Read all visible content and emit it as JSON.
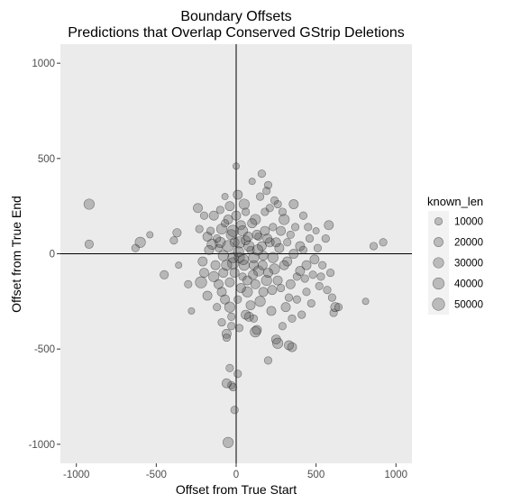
{
  "chart_data": {
    "type": "scatter",
    "title": "Boundary Offsets",
    "subtitle": "Predictions that Overlap Conserved GStrip Deletions",
    "xlabel": "Offset from True Start",
    "ylabel": "Offset from True End",
    "xlim": [
      -1100,
      1100
    ],
    "ylim": [
      -1100,
      1100
    ],
    "x_ticks": [
      -1000,
      -500,
      0,
      500,
      1000
    ],
    "y_ticks": [
      -1000,
      -500,
      0,
      500,
      1000
    ],
    "x_tick_labels": [
      "-1000",
      "-500",
      "0",
      "500",
      "1000"
    ],
    "y_tick_labels": [
      "-1000",
      "-500",
      "0",
      "500",
      "1000"
    ],
    "grid": true,
    "reference_lines": {
      "x": 0,
      "y": 0
    },
    "legend": {
      "title": "known_len",
      "placement": "right",
      "entries": [
        {
          "label": "10000",
          "value": 10000
        },
        {
          "label": "20000",
          "value": 20000
        },
        {
          "label": "30000",
          "value": 30000
        },
        {
          "label": "40000",
          "value": 40000
        },
        {
          "label": "50000",
          "value": 50000
        }
      ]
    },
    "colors": {
      "panel": "#ebebeb",
      "grid": "#ffffff",
      "point_fill": "#555555",
      "point_stroke": "#000000",
      "legend_key": "#f2f2f2"
    },
    "points": [
      {
        "x": -920,
        "y": 260,
        "size": 30000
      },
      {
        "x": -920,
        "y": 50,
        "size": 15000
      },
      {
        "x": -600,
        "y": 60,
        "size": 30000
      },
      {
        "x": -630,
        "y": 30,
        "size": 10000
      },
      {
        "x": -540,
        "y": 100,
        "size": 5000
      },
      {
        "x": -450,
        "y": -110,
        "size": 15000
      },
      {
        "x": -390,
        "y": 70,
        "size": 10000
      },
      {
        "x": -370,
        "y": 110,
        "size": 15000
      },
      {
        "x": -360,
        "y": -60,
        "size": 5000
      },
      {
        "x": -300,
        "y": -160,
        "size": 10000
      },
      {
        "x": -280,
        "y": -300,
        "size": 5000
      },
      {
        "x": -220,
        "y": -150,
        "size": 40000
      },
      {
        "x": -200,
        "y": 200,
        "size": 10000
      },
      {
        "x": -180,
        "y": 90,
        "size": 20000
      },
      {
        "x": -150,
        "y": 50,
        "size": 30000
      },
      {
        "x": -130,
        "y": -60,
        "size": 20000
      },
      {
        "x": -110,
        "y": 30,
        "size": 10000
      },
      {
        "x": -100,
        "y": 230,
        "size": 10000
      },
      {
        "x": -90,
        "y": 130,
        "size": 30000
      },
      {
        "x": -80,
        "y": -100,
        "size": 20000
      },
      {
        "x": -70,
        "y": 300,
        "size": 5000
      },
      {
        "x": -60,
        "y": -420,
        "size": 20000
      },
      {
        "x": -60,
        "y": -440,
        "size": 10000
      },
      {
        "x": -50,
        "y": 180,
        "size": 20000
      },
      {
        "x": -40,
        "y": -280,
        "size": 30000
      },
      {
        "x": -40,
        "y": -150,
        "size": 20000
      },
      {
        "x": -30,
        "y": 100,
        "size": 30000
      },
      {
        "x": -20,
        "y": -50,
        "size": 40000
      },
      {
        "x": -10,
        "y": 60,
        "size": 20000
      },
      {
        "x": 0,
        "y": 460,
        "size": 5000
      },
      {
        "x": 10,
        "y": 310,
        "size": 20000
      },
      {
        "x": 20,
        "y": -20,
        "size": 30000
      },
      {
        "x": 30,
        "y": 150,
        "size": 20000
      },
      {
        "x": 40,
        "y": -120,
        "size": 10000
      },
      {
        "x": 50,
        "y": 260,
        "size": 30000
      },
      {
        "x": 60,
        "y": 70,
        "size": 20000
      },
      {
        "x": 70,
        "y": -200,
        "size": 30000
      },
      {
        "x": 80,
        "y": -330,
        "size": 20000
      },
      {
        "x": 90,
        "y": 20,
        "size": 10000
      },
      {
        "x": 100,
        "y": 380,
        "size": 5000
      },
      {
        "x": 110,
        "y": -60,
        "size": 20000
      },
      {
        "x": 120,
        "y": 180,
        "size": 30000
      },
      {
        "x": 130,
        "y": -400,
        "size": 20000
      },
      {
        "x": 140,
        "y": 90,
        "size": 10000
      },
      {
        "x": 150,
        "y": -250,
        "size": 30000
      },
      {
        "x": 160,
        "y": 420,
        "size": 10000
      },
      {
        "x": 170,
        "y": -10,
        "size": 20000
      },
      {
        "x": 180,
        "y": 220,
        "size": 10000
      },
      {
        "x": 190,
        "y": -140,
        "size": 30000
      },
      {
        "x": 200,
        "y": 360,
        "size": 10000
      },
      {
        "x": 210,
        "y": 60,
        "size": 20000
      },
      {
        "x": 220,
        "y": -300,
        "size": 20000
      },
      {
        "x": 230,
        "y": 140,
        "size": 10000
      },
      {
        "x": 240,
        "y": -80,
        "size": 30000
      },
      {
        "x": 250,
        "y": -450,
        "size": 20000
      },
      {
        "x": 260,
        "y": 260,
        "size": 10000
      },
      {
        "x": 270,
        "y": 30,
        "size": 20000
      },
      {
        "x": 280,
        "y": -180,
        "size": 10000
      },
      {
        "x": 290,
        "y": -380,
        "size": 10000
      },
      {
        "x": 300,
        "y": 180,
        "size": 30000
      },
      {
        "x": 320,
        "y": -40,
        "size": 20000
      },
      {
        "x": 330,
        "y": -230,
        "size": 10000
      },
      {
        "x": 340,
        "y": 100,
        "size": 10000
      },
      {
        "x": 350,
        "y": -490,
        "size": 20000
      },
      {
        "x": 360,
        "y": 260,
        "size": 20000
      },
      {
        "x": 380,
        "y": -120,
        "size": 10000
      },
      {
        "x": 400,
        "y": 40,
        "size": 20000
      },
      {
        "x": 410,
        "y": -320,
        "size": 10000
      },
      {
        "x": 420,
        "y": 200,
        "size": 10000
      },
      {
        "x": 440,
        "y": -60,
        "size": 20000
      },
      {
        "x": 460,
        "y": 80,
        "size": 10000
      },
      {
        "x": 470,
        "y": -260,
        "size": 10000
      },
      {
        "x": 490,
        "y": -30,
        "size": 20000
      },
      {
        "x": 500,
        "y": 120,
        "size": 5000
      },
      {
        "x": 520,
        "y": -170,
        "size": 10000
      },
      {
        "x": 540,
        "y": -60,
        "size": 10000
      },
      {
        "x": 570,
        "y": -190,
        "size": 10000
      },
      {
        "x": 580,
        "y": 150,
        "size": 20000
      },
      {
        "x": 600,
        "y": -230,
        "size": 10000
      },
      {
        "x": 610,
        "y": -310,
        "size": 10000
      },
      {
        "x": 620,
        "y": -280,
        "size": 20000
      },
      {
        "x": 640,
        "y": -280,
        "size": 10000
      },
      {
        "x": 810,
        "y": -250,
        "size": 5000
      },
      {
        "x": 860,
        "y": 40,
        "size": 10000
      },
      {
        "x": 920,
        "y": 60,
        "size": 10000
      },
      {
        "x": -40,
        "y": -600,
        "size": 10000
      },
      {
        "x": -30,
        "y": -690,
        "size": 10000
      },
      {
        "x": -20,
        "y": -700,
        "size": 10000
      },
      {
        "x": -60,
        "y": -680,
        "size": 20000
      },
      {
        "x": -50,
        "y": -990,
        "size": 30000
      },
      {
        "x": -10,
        "y": -820,
        "size": 10000
      },
      {
        "x": 10,
        "y": -630,
        "size": 10000
      },
      {
        "x": 120,
        "y": -410,
        "size": 30000
      },
      {
        "x": 200,
        "y": -560,
        "size": 10000
      },
      {
        "x": 260,
        "y": -470,
        "size": 30000
      },
      {
        "x": 330,
        "y": -480,
        "size": 20000
      },
      {
        "x": -240,
        "y": 240,
        "size": 20000
      },
      {
        "x": -210,
        "y": -40,
        "size": 20000
      },
      {
        "x": -180,
        "y": -220,
        "size": 20000
      },
      {
        "x": -160,
        "y": 120,
        "size": 10000
      },
      {
        "x": -140,
        "y": -120,
        "size": 30000
      },
      {
        "x": -120,
        "y": -280,
        "size": 10000
      },
      {
        "x": -100,
        "y": 60,
        "size": 30000
      },
      {
        "x": -90,
        "y": -200,
        "size": 20000
      },
      {
        "x": -70,
        "y": 160,
        "size": 10000
      },
      {
        "x": -60,
        "y": -60,
        "size": 30000
      },
      {
        "x": -40,
        "y": 250,
        "size": 20000
      },
      {
        "x": -30,
        "y": -330,
        "size": 10000
      },
      {
        "x": -20,
        "y": 120,
        "size": 40000
      },
      {
        "x": -10,
        "y": -100,
        "size": 20000
      },
      {
        "x": 0,
        "y": 200,
        "size": 20000
      },
      {
        "x": 10,
        "y": -240,
        "size": 10000
      },
      {
        "x": 20,
        "y": 60,
        "size": 40000
      },
      {
        "x": 30,
        "y": -180,
        "size": 20000
      },
      {
        "x": 40,
        "y": 120,
        "size": 30000
      },
      {
        "x": 50,
        "y": -60,
        "size": 30000
      },
      {
        "x": 60,
        "y": 220,
        "size": 10000
      },
      {
        "x": 70,
        "y": -140,
        "size": 20000
      },
      {
        "x": 80,
        "y": 40,
        "size": 30000
      },
      {
        "x": 90,
        "y": -270,
        "size": 20000
      },
      {
        "x": 100,
        "y": 160,
        "size": 20000
      },
      {
        "x": 110,
        "y": -20,
        "size": 30000
      },
      {
        "x": 120,
        "y": -160,
        "size": 20000
      },
      {
        "x": 130,
        "y": 100,
        "size": 20000
      },
      {
        "x": 140,
        "y": -90,
        "size": 30000
      },
      {
        "x": 160,
        "y": 40,
        "size": 20000
      },
      {
        "x": 170,
        "y": -200,
        "size": 20000
      },
      {
        "x": 180,
        "y": 120,
        "size": 20000
      },
      {
        "x": 200,
        "y": -100,
        "size": 20000
      },
      {
        "x": 210,
        "y": 240,
        "size": 10000
      },
      {
        "x": 230,
        "y": -20,
        "size": 30000
      },
      {
        "x": 250,
        "y": 60,
        "size": 20000
      },
      {
        "x": 260,
        "y": -140,
        "size": 20000
      },
      {
        "x": 280,
        "y": 120,
        "size": 20000
      },
      {
        "x": 300,
        "y": -60,
        "size": 20000
      },
      {
        "x": 320,
        "y": 60,
        "size": 10000
      },
      {
        "x": 340,
        "y": -160,
        "size": 20000
      },
      {
        "x": 360,
        "y": 0,
        "size": 20000
      },
      {
        "x": 380,
        "y": -240,
        "size": 10000
      },
      {
        "x": 400,
        "y": -90,
        "size": 20000
      },
      {
        "x": 420,
        "y": 20,
        "size": 10000
      },
      {
        "x": 440,
        "y": -200,
        "size": 10000
      },
      {
        "x": -120,
        "y": 80,
        "size": 10000
      },
      {
        "x": -80,
        "y": -10,
        "size": 30000
      },
      {
        "x": -50,
        "y": 40,
        "size": 40000
      },
      {
        "x": -20,
        "y": -20,
        "size": 30000
      },
      {
        "x": 15,
        "y": 10,
        "size": 30000
      },
      {
        "x": 45,
        "y": -30,
        "size": 30000
      },
      {
        "x": 75,
        "y": 90,
        "size": 20000
      },
      {
        "x": 105,
        "y": -110,
        "size": 20000
      },
      {
        "x": 135,
        "y": 20,
        "size": 30000
      },
      {
        "x": 165,
        "y": -60,
        "size": 20000
      },
      {
        "x": 195,
        "y": 80,
        "size": 20000
      },
      {
        "x": 225,
        "y": -190,
        "size": 20000
      },
      {
        "x": -230,
        "y": 130,
        "size": 10000
      },
      {
        "x": -200,
        "y": -100,
        "size": 20000
      },
      {
        "x": -170,
        "y": 20,
        "size": 20000
      },
      {
        "x": -140,
        "y": 200,
        "size": 20000
      },
      {
        "x": -110,
        "y": -160,
        "size": 20000
      },
      {
        "x": -90,
        "y": -360,
        "size": 10000
      },
      {
        "x": -70,
        "y": -240,
        "size": 20000
      },
      {
        "x": -30,
        "y": -380,
        "size": 10000
      },
      {
        "x": 20,
        "y": -390,
        "size": 10000
      },
      {
        "x": 60,
        "y": -320,
        "size": 20000
      },
      {
        "x": 110,
        "y": -340,
        "size": 10000
      },
      {
        "x": 150,
        "y": 300,
        "size": 10000
      },
      {
        "x": 190,
        "y": 330,
        "size": 10000
      },
      {
        "x": 240,
        "y": 280,
        "size": 10000
      },
      {
        "x": 290,
        "y": 220,
        "size": 10000
      },
      {
        "x": 310,
        "y": -280,
        "size": 20000
      },
      {
        "x": 350,
        "y": -340,
        "size": 10000
      },
      {
        "x": 370,
        "y": 140,
        "size": 10000
      },
      {
        "x": 430,
        "y": -130,
        "size": 10000
      },
      {
        "x": 450,
        "y": 140,
        "size": 10000
      },
      {
        "x": 480,
        "y": -110,
        "size": 10000
      },
      {
        "x": 510,
        "y": 30,
        "size": 10000
      },
      {
        "x": 530,
        "y": -120,
        "size": 10000
      },
      {
        "x": 560,
        "y": 80,
        "size": 10000
      },
      {
        "x": 590,
        "y": -100,
        "size": 10000
      }
    ]
  }
}
